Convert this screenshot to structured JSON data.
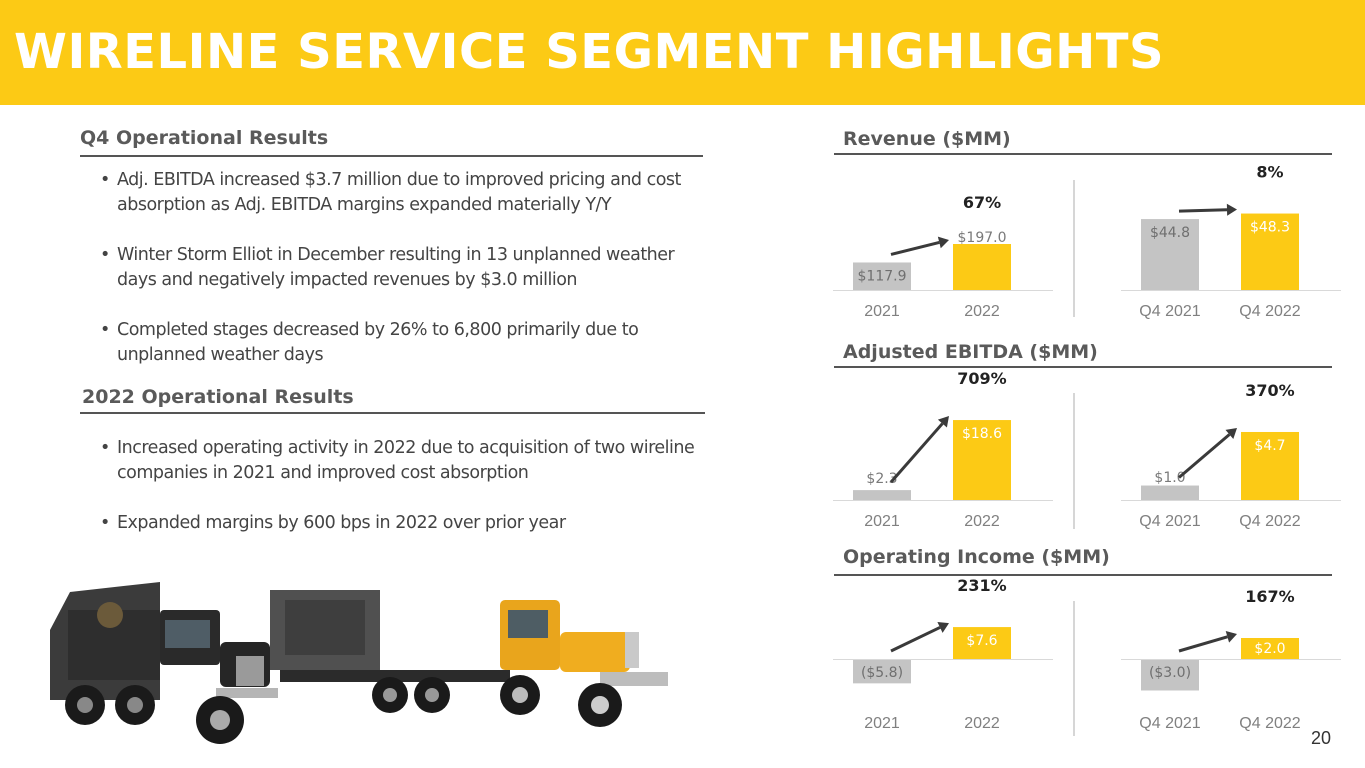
{
  "title": "WIRELINE SERVICE SEGMENT HIGHLIGHTS",
  "page_number": "20",
  "left": {
    "q4_heading": "Q4 Operational Results",
    "q4_bullets": [
      "Adj. EBITDA increased $3.7 million due to improved pricing and cost absorption as Adj. EBITDA margins expanded materially Y/Y",
      "Winter Storm Elliot in December resulting in 13 unplanned weather days and negatively impacted revenues by $3.0 million",
      "Completed stages decreased by 26% to 6,800 primarily due to unplanned weather days"
    ],
    "fy_heading": "2022 Operational Results",
    "fy_bullets": [
      "Increased operating activity in 2022 due to acquisition of two wireline companies in 2021 and improved cost absorption",
      "Expanded margins by 600 bps in 2022 over prior year"
    ]
  },
  "colors": {
    "brand_yellow": "#fcca15",
    "prior_gray": "#c4c4c4",
    "arrow": "#3a3a3a"
  },
  "chart_data": [
    {
      "type": "bar",
      "title": "Revenue ($MM)",
      "categories": [
        "2021",
        "2022"
      ],
      "values": [
        117.9,
        197.0
      ],
      "labels": [
        "$117.9",
        "$197.0"
      ],
      "change": "67%"
    },
    {
      "type": "bar",
      "title": "",
      "categories": [
        "Q4 2021",
        "Q4 2022"
      ],
      "values": [
        44.8,
        48.3
      ],
      "labels": [
        "$44.8",
        "$48.3"
      ],
      "change": "8%"
    },
    {
      "type": "bar",
      "title": "Adjusted EBITDA ($MM)",
      "categories": [
        "2021",
        "2022"
      ],
      "values": [
        2.3,
        18.6
      ],
      "labels": [
        "$2.3",
        "$18.6"
      ],
      "change": "709%"
    },
    {
      "type": "bar",
      "title": "",
      "categories": [
        "Q4 2021",
        "Q4 2022"
      ],
      "values": [
        1.0,
        4.7
      ],
      "labels": [
        "$1.0",
        "$4.7"
      ],
      "change": "370%"
    },
    {
      "type": "bar",
      "title": "Operating Income ($MM)",
      "categories": [
        "2021",
        "2022"
      ],
      "values": [
        -5.8,
        7.6
      ],
      "labels": [
        "($5.8)",
        "$7.6"
      ],
      "change": "231%"
    },
    {
      "type": "bar",
      "title": "",
      "categories": [
        "Q4 2021",
        "Q4 2022"
      ],
      "values": [
        -3.0,
        2.0
      ],
      "labels": [
        "($3.0)",
        "$2.0"
      ],
      "change": "167%"
    }
  ]
}
